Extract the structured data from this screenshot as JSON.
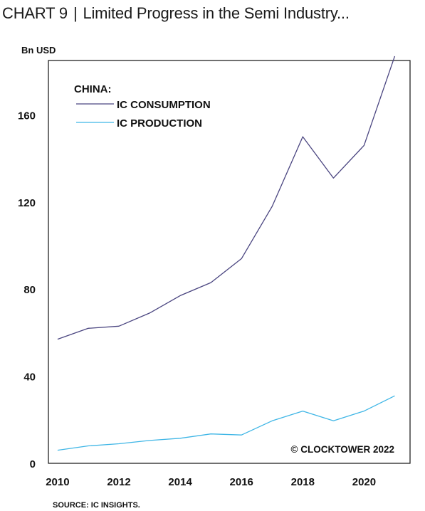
{
  "header": {
    "chart_number": "CHART 9",
    "separator": "|",
    "title": "Limited Progress in the Semi Industry..."
  },
  "source": "SOURCE: IC INSIGHTS.",
  "colors": {
    "consumption": "#4a4580",
    "production": "#3fb6e6",
    "frame": "#111111"
  },
  "chart_data": {
    "type": "line",
    "ylabel": "Bn USD",
    "ylim": [
      0,
      185
    ],
    "yticks": [
      0,
      40,
      80,
      120,
      160
    ],
    "xlim": [
      2009.7,
      2021.5
    ],
    "xticks": [
      2010,
      2012,
      2014,
      2016,
      2018,
      2020
    ],
    "legend_title": "CHINA:",
    "legend_position": "top-left",
    "annotation": "© CLOCKTOWER 2022",
    "grid": false,
    "series": [
      {
        "name": "IC CONSUMPTION",
        "x": [
          2010,
          2011,
          2012,
          2013,
          2014,
          2015,
          2016,
          2017,
          2018,
          2019,
          2020,
          2021
        ],
        "values": [
          57,
          62,
          63,
          69,
          77,
          83,
          94,
          118,
          150,
          131,
          146,
          187
        ]
      },
      {
        "name": "IC PRODUCTION",
        "x": [
          2010,
          2011,
          2012,
          2013,
          2014,
          2015,
          2016,
          2017,
          2018,
          2019,
          2020,
          2021
        ],
        "values": [
          6,
          8,
          9,
          10.5,
          11.5,
          13.5,
          13,
          19.5,
          24,
          19.5,
          24,
          31
        ]
      }
    ]
  }
}
